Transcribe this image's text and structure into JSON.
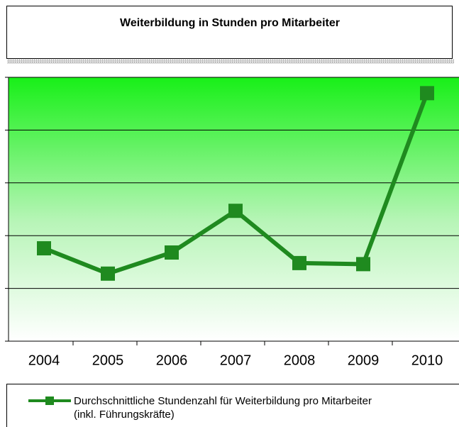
{
  "chart_data": {
    "type": "line",
    "title": "Weiterbildung in Stunden pro Mitarbeiter",
    "categories": [
      "2004",
      "2005",
      "2006",
      "2007",
      "2008",
      "2009",
      "2010"
    ],
    "series": [
      {
        "name": "Durchschnittliche Stundenzahl für Weiterbildung pro Mitarbeiter\n(inkl. Führungskräfte)",
        "color": "#1f8a1f",
        "values": [
          1.76,
          1.28,
          1.68,
          2.47,
          1.48,
          1.46,
          4.7
        ]
      }
    ],
    "ylim": [
      0,
      5
    ],
    "yticks": [
      0,
      1,
      2,
      3,
      4,
      5
    ],
    "grid": true,
    "legend": "bottom"
  }
}
